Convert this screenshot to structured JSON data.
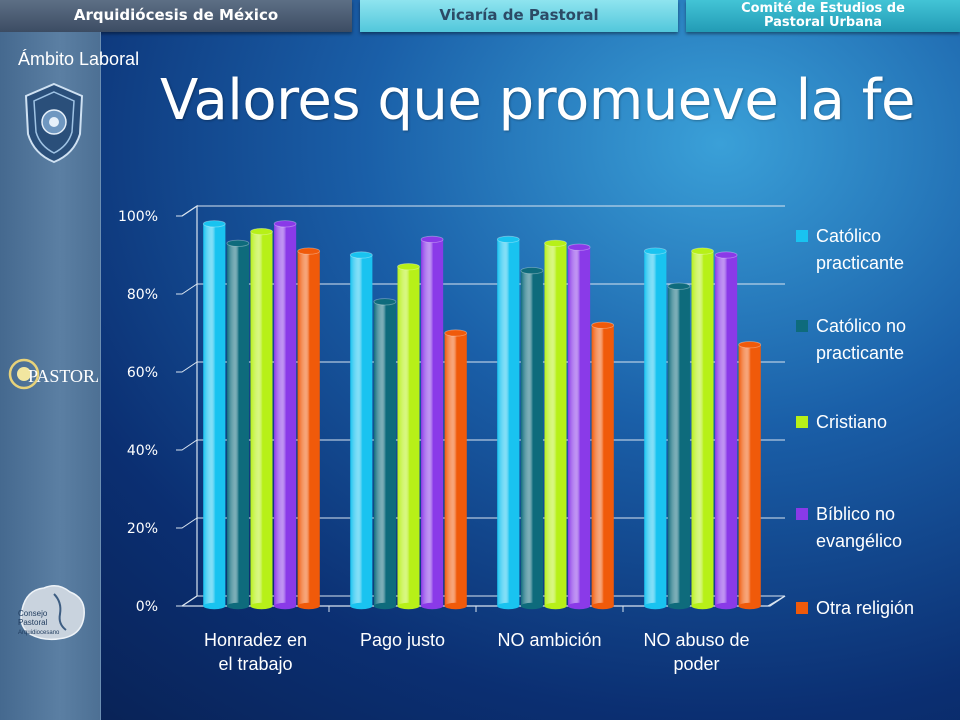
{
  "header": {
    "tabs": [
      {
        "label": "Arquidiócesis de México"
      },
      {
        "label": "Vicaría de Pastoral"
      },
      {
        "label_line1": "Comité de Estudios de",
        "label_line2": "Pastoral Urbana"
      }
    ]
  },
  "slide": {
    "section": "Ámbito Laboral",
    "title": "Valores que promueve la fe"
  },
  "logos": {
    "pastoral": "PASTORAL",
    "consejo_line1": "Consejo",
    "consejo_line2": "Pastoral",
    "consejo_line3": "Arquidiocesano"
  },
  "chart_data": {
    "type": "bar",
    "title": "",
    "xlabel": "",
    "ylabel": "",
    "ylim": [
      0,
      100
    ],
    "yticks": [
      "0%",
      "20%",
      "40%",
      "60%",
      "80%",
      "100%"
    ],
    "ytick_values": [
      0,
      20,
      40,
      60,
      80,
      100
    ],
    "categories": [
      [
        "Honradez en",
        "el trabajo"
      ],
      [
        "Pago justo"
      ],
      [
        "NO ambición"
      ],
      [
        "NO abuso de",
        "poder"
      ]
    ],
    "legend_position": "right",
    "series": [
      {
        "name": [
          "Católico",
          "practicante"
        ],
        "color": "#19c3f0",
        "values": [
          98,
          90,
          94,
          91
        ]
      },
      {
        "name": [
          "Católico no",
          "practicante"
        ],
        "color": "#0e6b7c",
        "values": [
          93,
          78,
          86,
          82
        ]
      },
      {
        "name": [
          "Cristiano"
        ],
        "color": "#b7f018",
        "values": [
          96,
          87,
          93,
          91
        ]
      },
      {
        "name": [
          "Bíblico no",
          "evangélico"
        ],
        "color": "#8a3ae8",
        "values": [
          98,
          94,
          92,
          90
        ]
      },
      {
        "name": [
          "Otra religión"
        ],
        "color": "#f05a0a",
        "values": [
          91,
          70,
          72,
          67
        ]
      }
    ]
  }
}
